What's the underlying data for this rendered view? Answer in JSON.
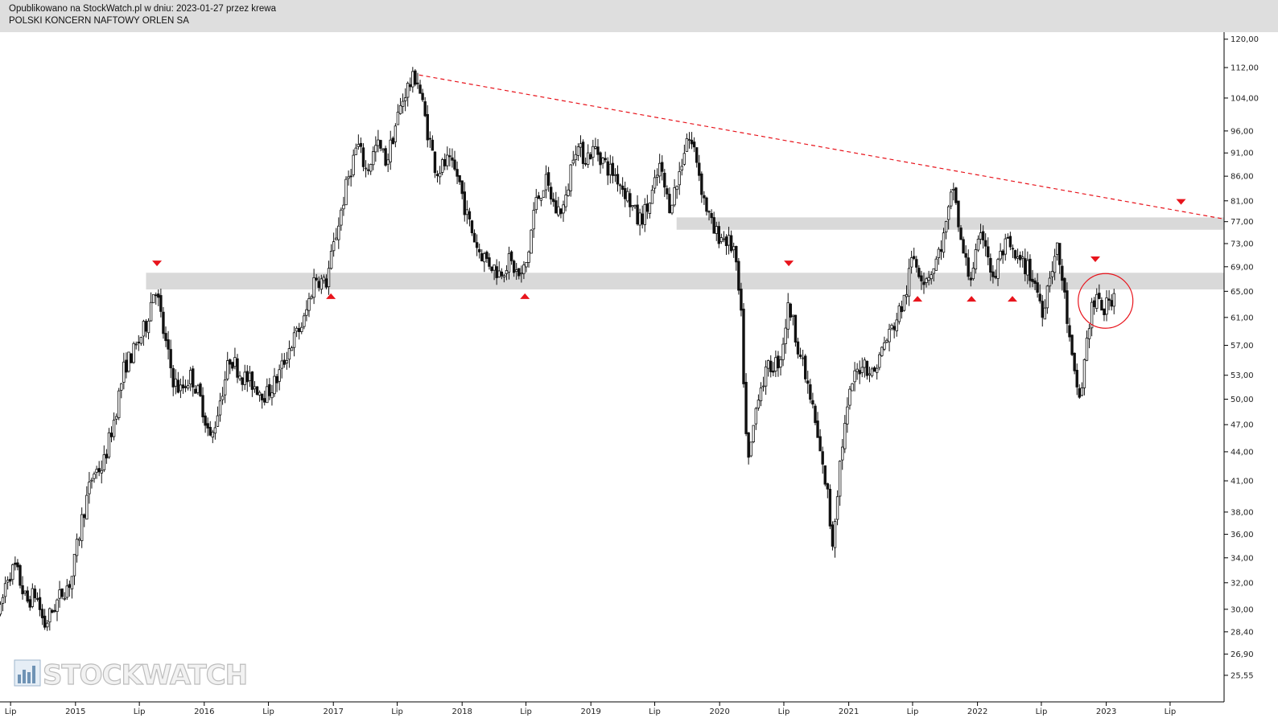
{
  "header": {
    "published_line": "Opublikowano na StockWatch.pl w dniu: 2023-01-27 przez krewa",
    "instrument": "POLSKI KONCERN NAFTOWY ORLEN SA"
  },
  "watermark": {
    "text": "STOCKWATCH",
    "icon": "bar-chart-logo-icon"
  },
  "colors": {
    "candle": "#111111",
    "annotation": "#e8141c",
    "zone": "#d9d9d9",
    "background": "#ffffff",
    "header": "#dedede"
  },
  "chart_data": {
    "type": "candlestick",
    "scale": "log",
    "ylim": [
      25.2,
      121
    ],
    "xlim": [
      "2014-06-01",
      "2023-12-01"
    ],
    "y_ticks": [
      {
        "value": 120,
        "label": "120,00"
      },
      {
        "value": 112,
        "label": "112,00"
      },
      {
        "value": 104,
        "label": "104,00"
      },
      {
        "value": 96,
        "label": "96,00"
      },
      {
        "value": 91,
        "label": "91,00"
      },
      {
        "value": 86,
        "label": "86,00"
      },
      {
        "value": 81,
        "label": "81,00"
      },
      {
        "value": 77,
        "label": "77,00"
      },
      {
        "value": 73,
        "label": "73,00"
      },
      {
        "value": 69,
        "label": "69,00"
      },
      {
        "value": 65,
        "label": "65,00"
      },
      {
        "value": 61,
        "label": "61,00"
      },
      {
        "value": 57,
        "label": "57,00"
      },
      {
        "value": 53,
        "label": "53,00"
      },
      {
        "value": 50,
        "label": "50,00"
      },
      {
        "value": 47,
        "label": "47,00"
      },
      {
        "value": 44,
        "label": "44,00"
      },
      {
        "value": 41,
        "label": "41,00"
      },
      {
        "value": 38,
        "label": "38,00"
      },
      {
        "value": 36,
        "label": "36,00"
      },
      {
        "value": 34,
        "label": "34,00"
      },
      {
        "value": 32,
        "label": "32,00"
      },
      {
        "value": 30,
        "label": "30,00"
      },
      {
        "value": 28.4,
        "label": "28,40"
      },
      {
        "value": 26.9,
        "label": "26,90"
      },
      {
        "value": 25.55,
        "label": "25,55"
      }
    ],
    "x_ticks": [
      {
        "date": "2014-07-01",
        "label": "Lip"
      },
      {
        "date": "2015-01-01",
        "label": "2015"
      },
      {
        "date": "2015-07-01",
        "label": "Lip"
      },
      {
        "date": "2016-01-01",
        "label": "2016"
      },
      {
        "date": "2016-07-01",
        "label": "Lip"
      },
      {
        "date": "2017-01-01",
        "label": "2017"
      },
      {
        "date": "2017-07-01",
        "label": "Lip"
      },
      {
        "date": "2018-01-01",
        "label": "2018"
      },
      {
        "date": "2018-07-01",
        "label": "Lip"
      },
      {
        "date": "2019-01-01",
        "label": "2019"
      },
      {
        "date": "2019-07-01",
        "label": "Lip"
      },
      {
        "date": "2020-01-01",
        "label": "2020"
      },
      {
        "date": "2020-07-01",
        "label": "Lip"
      },
      {
        "date": "2021-01-01",
        "label": "2021"
      },
      {
        "date": "2021-07-01",
        "label": "Lip"
      },
      {
        "date": "2022-01-01",
        "label": "2022"
      },
      {
        "date": "2022-07-01",
        "label": "Lip"
      },
      {
        "date": "2023-01-01",
        "label": "2023"
      },
      {
        "date": "2023-07-01",
        "label": "Lip"
      }
    ],
    "price_path": [
      [
        "2014-06-02",
        29.8
      ],
      [
        "2014-06-20",
        32.5
      ],
      [
        "2014-07-15",
        33.2
      ],
      [
        "2014-08-15",
        30.5
      ],
      [
        "2014-09-10",
        31.2
      ],
      [
        "2014-10-05",
        28.8
      ],
      [
        "2014-10-25",
        29.8
      ],
      [
        "2014-11-25",
        31.3
      ],
      [
        "2014-12-20",
        32.2
      ],
      [
        "2015-01-20",
        37.5
      ],
      [
        "2015-02-20",
        41.8
      ],
      [
        "2015-03-20",
        42.5
      ],
      [
        "2015-04-20",
        47.5
      ],
      [
        "2015-05-20",
        54.2
      ],
      [
        "2015-06-20",
        56.5
      ],
      [
        "2015-07-20",
        60.0
      ],
      [
        "2015-08-15",
        66.3
      ],
      [
        "2015-09-10",
        58.0
      ],
      [
        "2015-10-05",
        52.5
      ],
      [
        "2015-10-25",
        51.0
      ],
      [
        "2015-11-25",
        53.0
      ],
      [
        "2015-12-25",
        49.5
      ],
      [
        "2016-01-20",
        45.0
      ],
      [
        "2016-02-15",
        50.0
      ],
      [
        "2016-03-15",
        55.5
      ],
      [
        "2016-04-15",
        53.0
      ],
      [
        "2016-05-15",
        52.0
      ],
      [
        "2016-06-25",
        50.5
      ],
      [
        "2016-07-25",
        52.5
      ],
      [
        "2016-09-01",
        57.0
      ],
      [
        "2016-10-10",
        60.5
      ],
      [
        "2016-11-10",
        67.5
      ],
      [
        "2016-12-10",
        66.0
      ],
      [
        "2017-01-10",
        75.0
      ],
      [
        "2017-02-10",
        85.0
      ],
      [
        "2017-03-10",
        93.0
      ],
      [
        "2017-04-05",
        87.0
      ],
      [
        "2017-05-05",
        93.0
      ],
      [
        "2017-06-01",
        89.0
      ],
      [
        "2017-07-01",
        99.0
      ],
      [
        "2017-07-25",
        106.0
      ],
      [
        "2017-08-25",
        110.0
      ],
      [
        "2017-09-25",
        96.0
      ],
      [
        "2017-10-20",
        87.0
      ],
      [
        "2017-11-20",
        89.0
      ],
      [
        "2017-12-20",
        86.0
      ],
      [
        "2018-01-15",
        78.0
      ],
      [
        "2018-02-15",
        72.0
      ],
      [
        "2018-03-15",
        70.0
      ],
      [
        "2018-04-15",
        68.0
      ],
      [
        "2018-05-15",
        70.0
      ],
      [
        "2018-06-15",
        67.0
      ],
      [
        "2018-07-05",
        70.0
      ],
      [
        "2018-07-25",
        80.0
      ],
      [
        "2018-08-25",
        85.0
      ],
      [
        "2018-09-25",
        79.0
      ],
      [
        "2018-10-20",
        80.0
      ],
      [
        "2018-11-15",
        93.0
      ],
      [
        "2018-12-15",
        90.0
      ],
      [
        "2019-01-15",
        92.0
      ],
      [
        "2019-02-15",
        88.0
      ],
      [
        "2019-03-15",
        86.0
      ],
      [
        "2019-04-15",
        82.0
      ],
      [
        "2019-05-15",
        77.0
      ],
      [
        "2019-06-15",
        80.0
      ],
      [
        "2019-07-15",
        88.0
      ],
      [
        "2019-08-10",
        80.0
      ],
      [
        "2019-09-01",
        84.0
      ],
      [
        "2019-10-01",
        95.0
      ],
      [
        "2019-10-25",
        91.0
      ],
      [
        "2019-11-15",
        82.0
      ],
      [
        "2019-12-15",
        75.0
      ],
      [
        "2020-01-15",
        74.0
      ],
      [
        "2020-02-10",
        72.0
      ],
      [
        "2020-03-01",
        62.0
      ],
      [
        "2020-03-20",
        42.0
      ],
      [
        "2020-04-20",
        51.0
      ],
      [
        "2020-05-20",
        54.0
      ],
      [
        "2020-06-20",
        55.0
      ],
      [
        "2020-07-15",
        63.0
      ],
      [
        "2020-08-15",
        56.0
      ],
      [
        "2020-09-20",
        49.0
      ],
      [
        "2020-10-20",
        42.0
      ],
      [
        "2020-11-01",
        40.0
      ],
      [
        "2020-11-15",
        35.0
      ],
      [
        "2020-12-10",
        44.0
      ],
      [
        "2021-01-10",
        52.0
      ],
      [
        "2021-02-10",
        55.0
      ],
      [
        "2021-03-10",
        53.0
      ],
      [
        "2021-04-10",
        57.0
      ],
      [
        "2021-05-10",
        60.0
      ],
      [
        "2021-06-10",
        64.0
      ],
      [
        "2021-07-01",
        71.0
      ],
      [
        "2021-08-01",
        67.0
      ],
      [
        "2021-09-01",
        69.0
      ],
      [
        "2021-10-01",
        75.0
      ],
      [
        "2021-10-25",
        84.0
      ],
      [
        "2021-11-15",
        73.0
      ],
      [
        "2021-12-10",
        67.0
      ],
      [
        "2022-01-01",
        72.0
      ],
      [
        "2022-01-20",
        75.0
      ],
      [
        "2022-02-15",
        66.0
      ],
      [
        "2022-03-01",
        70.0
      ],
      [
        "2022-03-25",
        73.0
      ],
      [
        "2022-04-20",
        70.0
      ],
      [
        "2022-05-20",
        69.0
      ],
      [
        "2022-06-15",
        66.0
      ],
      [
        "2022-07-05",
        62.0
      ],
      [
        "2022-07-25",
        68.0
      ],
      [
        "2022-08-15",
        72.0
      ],
      [
        "2022-09-01",
        66.0
      ],
      [
        "2022-09-20",
        57.0
      ],
      [
        "2022-10-05",
        52.0
      ],
      [
        "2022-10-20",
        50.0
      ],
      [
        "2022-11-05",
        57.0
      ],
      [
        "2022-11-20",
        62.5
      ],
      [
        "2022-12-10",
        63.5
      ],
      [
        "2022-12-25",
        62.0
      ],
      [
        "2023-01-10",
        63.5
      ],
      [
        "2023-01-27",
        65.0
      ]
    ],
    "support_resistance_zones": [
      {
        "low": 65.3,
        "high": 68.0,
        "from": "2015-07-20",
        "to": "2023-12-01"
      },
      {
        "low": 75.5,
        "high": 77.8,
        "from": "2019-09-01",
        "to": "2023-12-01"
      }
    ],
    "trendline": {
      "from": [
        "2017-09-01",
        110.0
      ],
      "to": [
        "2023-12-01",
        77.5
      ],
      "style": "dashed",
      "color": "#e8141c"
    },
    "markers": [
      {
        "date": "2015-08-20",
        "price": 69.5,
        "direction": "down"
      },
      {
        "date": "2016-12-25",
        "price": 64.3,
        "direction": "up"
      },
      {
        "date": "2018-06-28",
        "price": 64.3,
        "direction": "up"
      },
      {
        "date": "2020-07-15",
        "price": 69.5,
        "direction": "down"
      },
      {
        "date": "2021-07-15",
        "price": 63.9,
        "direction": "up"
      },
      {
        "date": "2021-12-15",
        "price": 63.9,
        "direction": "up"
      },
      {
        "date": "2022-04-10",
        "price": 63.9,
        "direction": "up"
      },
      {
        "date": "2022-12-01",
        "price": 70.2,
        "direction": "down"
      },
      {
        "date": "2023-08-01",
        "price": 80.7,
        "direction": "down"
      }
    ],
    "highlight_circle": {
      "date": "2022-12-30",
      "price": 63.5,
      "color": "#e8141c"
    }
  }
}
